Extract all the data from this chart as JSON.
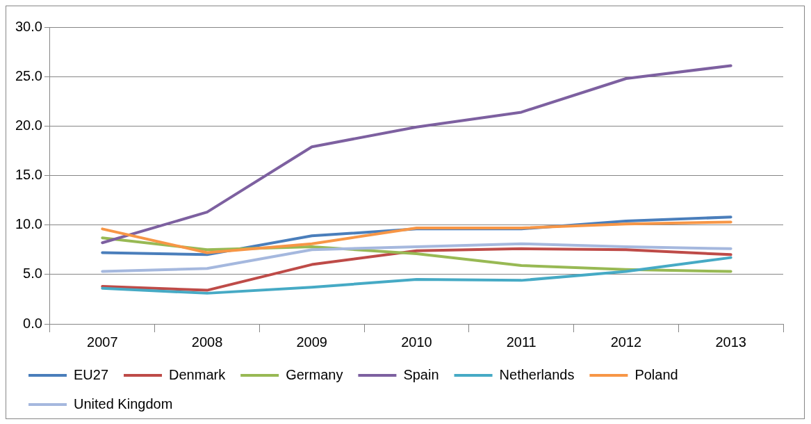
{
  "chart_data": {
    "type": "line",
    "categories": [
      "2007",
      "2008",
      "2009",
      "2010",
      "2011",
      "2012",
      "2013"
    ],
    "series": [
      {
        "name": "EU27",
        "color": "#4a7ebb",
        "values": [
          7.2,
          7.0,
          8.9,
          9.6,
          9.6,
          10.4,
          10.8
        ]
      },
      {
        "name": "Denmark",
        "color": "#be4b48",
        "values": [
          3.8,
          3.4,
          6.0,
          7.4,
          7.6,
          7.5,
          7.0
        ]
      },
      {
        "name": "Germany",
        "color": "#98b954",
        "values": [
          8.7,
          7.5,
          7.8,
          7.1,
          5.9,
          5.5,
          5.3
        ]
      },
      {
        "name": "Spain",
        "color": "#7d60a0",
        "values": [
          8.2,
          11.3,
          17.9,
          19.9,
          21.4,
          24.8,
          26.1
        ]
      },
      {
        "name": "Netherlands",
        "color": "#46aac5",
        "values": [
          3.6,
          3.1,
          3.7,
          4.5,
          4.4,
          5.3,
          6.7
        ]
      },
      {
        "name": "Poland",
        "color": "#f79646",
        "values": [
          9.6,
          7.2,
          8.1,
          9.7,
          9.7,
          10.1,
          10.3
        ]
      },
      {
        "name": "United Kingdom",
        "color": "#a5b8de",
        "values": [
          5.3,
          5.6,
          7.5,
          7.8,
          8.1,
          7.8,
          7.6
        ]
      }
    ],
    "ylim": [
      0,
      30
    ],
    "yticks": [
      {
        "value": 0,
        "label": "0.0"
      },
      {
        "value": 5,
        "label": "5.0"
      },
      {
        "value": 10,
        "label": "10.0"
      },
      {
        "value": 15,
        "label": "15.0"
      },
      {
        "value": 20,
        "label": "20.0"
      },
      {
        "value": 25,
        "label": "25.0"
      },
      {
        "value": 30,
        "label": "30.0"
      }
    ],
    "grid": "y",
    "legend": "bottom",
    "marker": "none",
    "line_style": "solid"
  }
}
